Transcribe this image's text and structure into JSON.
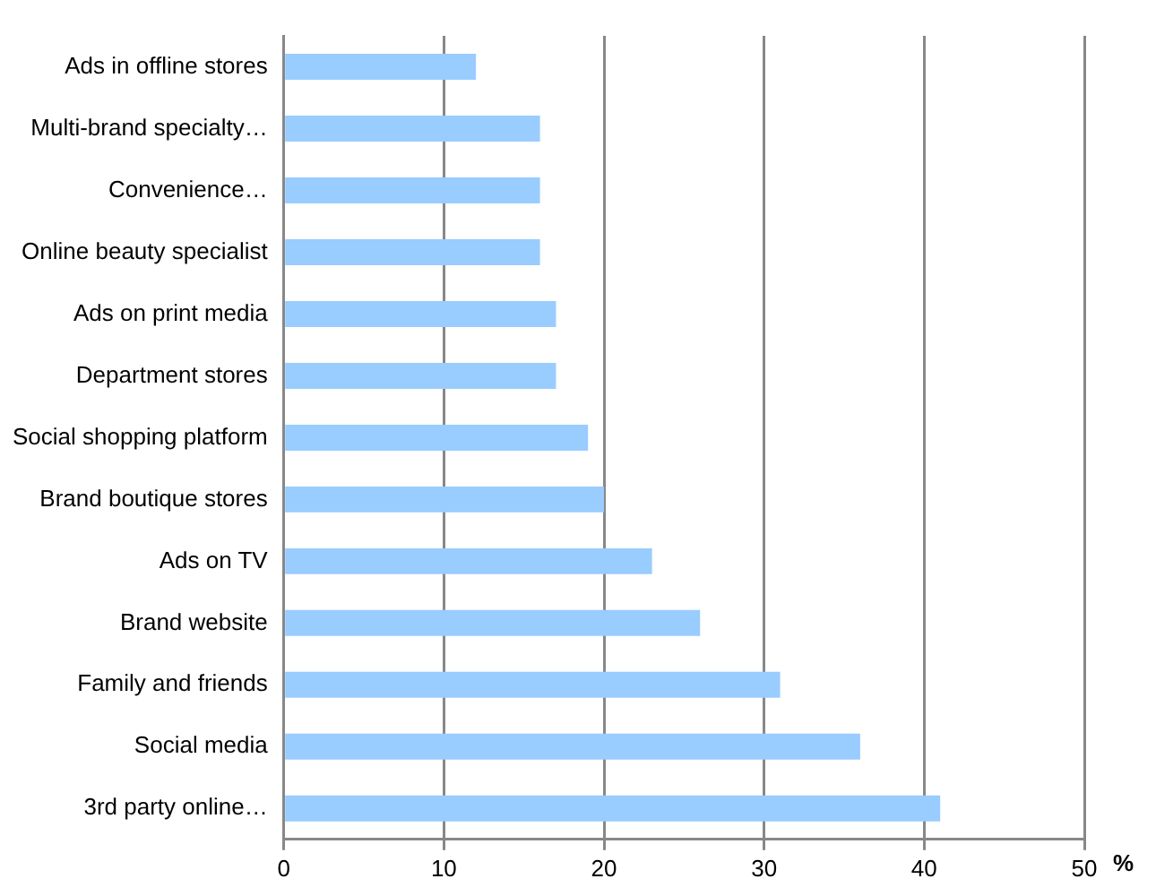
{
  "chart_data": {
    "type": "bar",
    "orientation": "horizontal",
    "xlabel": "%",
    "categories": [
      "Ads in offline stores",
      "Multi-brand specialty…",
      "Convenience…",
      "Online beauty specialist",
      "Ads on print media",
      "Department stores",
      "Social shopping platform",
      "Brand boutique stores",
      "Ads on TV",
      "Brand website",
      "Family and friends",
      "Social media",
      "3rd party online…"
    ],
    "values": [
      12,
      16,
      16,
      16,
      17,
      17,
      19,
      20,
      23,
      26,
      31,
      36,
      41
    ],
    "color": "#99ccff",
    "xlim": [
      0,
      50
    ],
    "xticks": [
      0,
      10,
      20,
      30,
      40,
      50
    ],
    "grid": "x",
    "legend": false
  }
}
